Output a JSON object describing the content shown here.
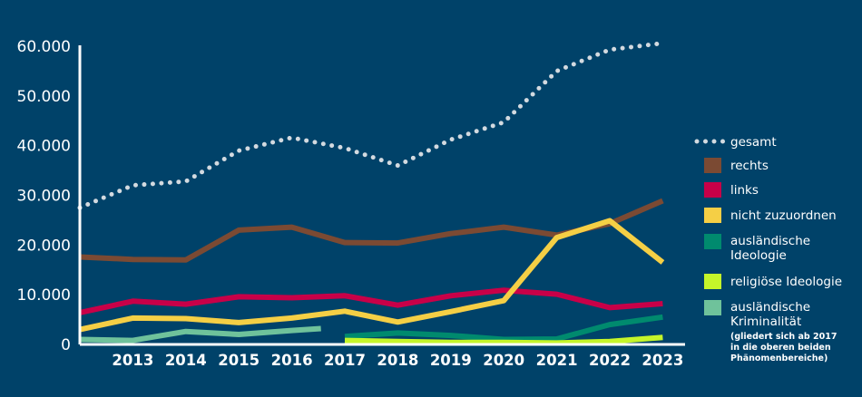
{
  "chart_data": {
    "type": "line",
    "background": "#004269",
    "x": [
      2012,
      2013,
      2014,
      2015,
      2016,
      2017,
      2018,
      2019,
      2020,
      2021,
      2022,
      2023
    ],
    "x_tick_labels": [
      "2013",
      "2014",
      "2015",
      "2016",
      "2017",
      "2018",
      "2019",
      "2020",
      "2021",
      "2022",
      "2023"
    ],
    "y_tick_labels": [
      "0",
      "10.000",
      "20.000",
      "30.000",
      "40.000",
      "50.000",
      "60.000"
    ],
    "ylim": [
      0,
      60000
    ],
    "grid": false,
    "legend_position": "right",
    "series": [
      {
        "name": "gesamt",
        "color": "#d3dae0",
        "style": "dotted",
        "x": [
          2012,
          2013,
          2014,
          2015,
          2016,
          2017,
          2018,
          2019,
          2020,
          2021,
          2022,
          2023
        ],
        "values": [
          27500,
          32000,
          32800,
          39000,
          41600,
          39500,
          36000,
          41200,
          44700,
          55000,
          59300,
          60600
        ]
      },
      {
        "name": "rechts",
        "color": "#7b4a33",
        "style": "solid",
        "x": [
          2012,
          2013,
          2014,
          2015,
          2016,
          2017,
          2018,
          2019,
          2020,
          2021,
          2022,
          2023
        ],
        "values": [
          17600,
          17100,
          17000,
          23000,
          23600,
          20500,
          20400,
          22300,
          23600,
          22000,
          24300,
          28900
        ]
      },
      {
        "name": "links",
        "color": "#c80048",
        "style": "solid",
        "x": [
          2012,
          2013,
          2014,
          2015,
          2016,
          2017,
          2018,
          2019,
          2020,
          2021,
          2022,
          2023
        ],
        "values": [
          6400,
          8700,
          8100,
          9600,
          9400,
          9800,
          7900,
          9800,
          10900,
          10100,
          7400,
          8200
        ]
      },
      {
        "name": "nicht zuzuordnen",
        "color": "#f5cf45",
        "style": "solid",
        "x": [
          2012,
          2013,
          2014,
          2015,
          2016,
          2017,
          2018,
          2019,
          2020,
          2021,
          2022,
          2023
        ],
        "values": [
          3000,
          5300,
          5200,
          4400,
          5300,
          6700,
          4500,
          6600,
          8800,
          21500,
          24900,
          16500
        ]
      },
      {
        "name": "ausländische Ideologie",
        "color": "#008a6e",
        "style": "solid",
        "x": [
          2017,
          2018,
          2019,
          2020,
          2021,
          2022,
          2023
        ],
        "values": [
          1600,
          2300,
          1800,
          1000,
          1100,
          4000,
          5500
        ]
      },
      {
        "name": "religiöse Ideologie",
        "color": "#c5f52a",
        "style": "solid",
        "x": [
          2017,
          2018,
          2019,
          2020,
          2021,
          2022,
          2023
        ],
        "values": [
          800,
          600,
          400,
          400,
          300,
          600,
          1400
        ]
      },
      {
        "name": "ausländische Kriminalität",
        "color": "#6fc29b",
        "style": "solid",
        "x": [
          2012,
          2013,
          2014,
          2015,
          2016,
          2016.55
        ],
        "values": [
          1000,
          800,
          2600,
          2000,
          2800,
          3200
        ]
      }
    ],
    "legend_note": [
      "(gliedert sich ab 2017",
      "in die oberen beiden",
      "Phänomenbereiche)"
    ]
  }
}
